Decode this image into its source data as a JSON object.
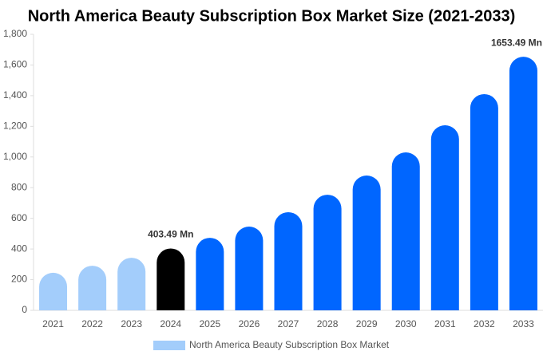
{
  "chart_data": {
    "type": "bar",
    "title": "North America Beauty Subscription Box Market Size (2021-2033)",
    "categories": [
      "2021",
      "2022",
      "2023",
      "2024",
      "2025",
      "2026",
      "2027",
      "2028",
      "2029",
      "2030",
      "2031",
      "2032",
      "2033"
    ],
    "series": [
      {
        "name": "North America Beauty Subscription Box Market",
        "color": "#a3cdfb",
        "colors": [
          "#a3cdfb",
          "#a3cdfb",
          "#a3cdfb",
          "#000000",
          "#0066ff",
          "#0066ff",
          "#0066ff",
          "#0066ff",
          "#0066ff",
          "#0066ff",
          "#0066ff",
          "#0066ff",
          "#0066ff"
        ],
        "values": [
          245,
          291,
          343,
          403.49,
          473,
          546,
          640,
          754,
          879,
          1030,
          1207,
          1410,
          1653.49
        ],
        "value_labels": [
          null,
          null,
          null,
          "403.49 Mn",
          null,
          null,
          null,
          null,
          null,
          null,
          null,
          null,
          "1653.49 Mn"
        ]
      }
    ],
    "ylim": [
      0,
      1800
    ],
    "yticks": [
      0,
      200,
      400,
      600,
      800,
      {
        "value": 1000,
        "label": "1,000"
      },
      {
        "value": 1200,
        "label": "1,200"
      },
      {
        "value": 1400,
        "label": "1,400"
      },
      {
        "value": 1600,
        "label": "1,600"
      },
      {
        "value": 1800,
        "label": "1,800"
      }
    ],
    "legend": "bottom"
  }
}
